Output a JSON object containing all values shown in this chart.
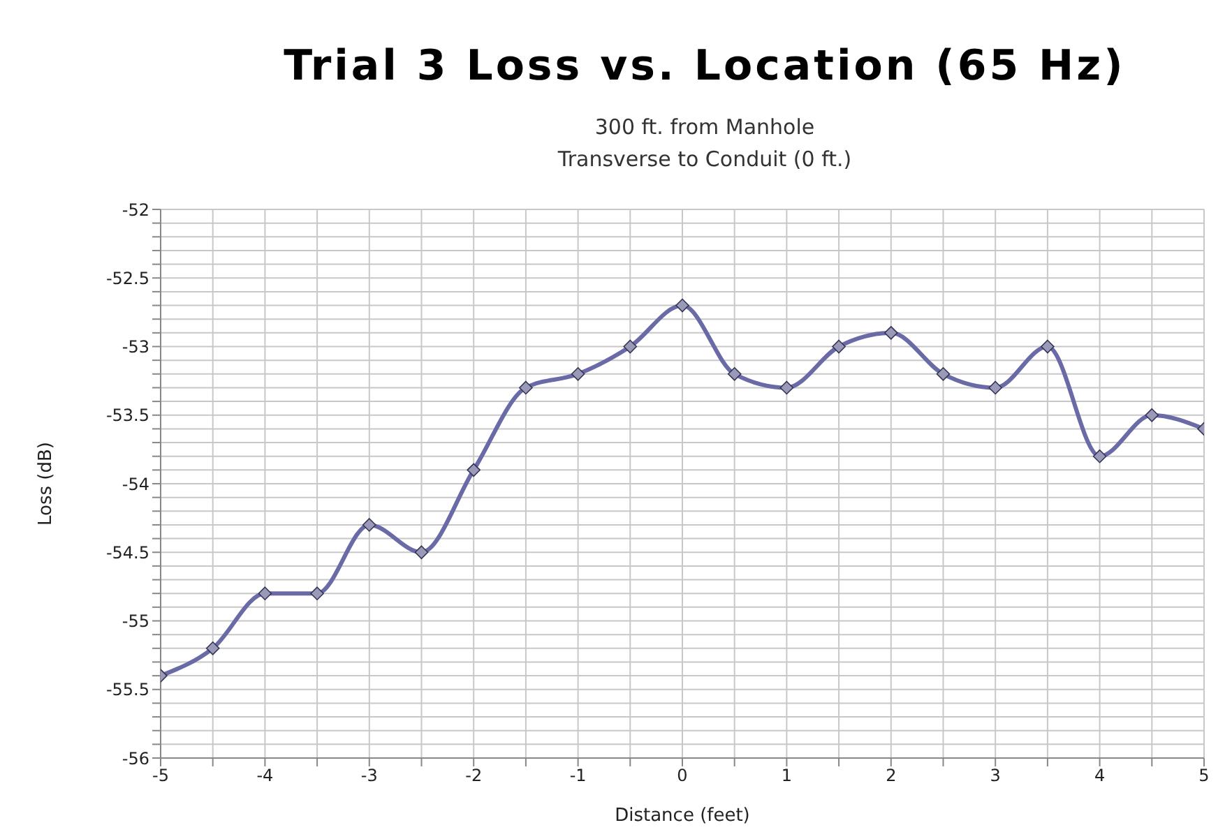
{
  "chart_data": {
    "type": "line",
    "title": "Trial 3 Loss vs. Location (65 Hz)",
    "subtitle": "300 ft. from Manhole\nTransverse to Conduit (0 ft.)",
    "xlabel": "Distance (feet)",
    "ylabel": "Loss (dB)",
    "x": [
      -5,
      -4.5,
      -4,
      -3.5,
      -3,
      -2.5,
      -2,
      -1.5,
      -1,
      -0.5,
      0,
      0.5,
      1,
      1.5,
      2,
      2.5,
      3,
      3.5,
      4,
      4.5,
      5
    ],
    "series": [
      {
        "color": "#6a6aa6",
        "values": [
          -55.4,
          -55.2,
          -54.8,
          -54.8,
          -54.3,
          -54.5,
          -53.9,
          -53.3,
          -53.2,
          -53.0,
          -52.7,
          -53.2,
          -53.3,
          -53.0,
          -52.9,
          -53.2,
          -53.3,
          -53.0,
          -53.8,
          -53.5,
          -53.6
        ]
      }
    ],
    "xlim": [
      -5,
      5
    ],
    "ylim": [
      -56,
      -52
    ],
    "xticks": [
      -5,
      {
        "value": -4.5,
        "label": null
      },
      -4,
      {
        "value": -3.5,
        "label": null
      },
      -3,
      {
        "value": -2.5,
        "label": null
      },
      -2,
      {
        "value": -1.5,
        "label": null
      },
      -1,
      {
        "value": -0.5,
        "label": null
      },
      0,
      {
        "value": 0.5,
        "label": null
      },
      1,
      {
        "value": 1.5,
        "label": null
      },
      2,
      {
        "value": 2.5,
        "label": null
      },
      3,
      {
        "value": 3.5,
        "label": null
      },
      4,
      {
        "value": 4.5,
        "label": null
      },
      5
    ],
    "yticks": [
      -56,
      {
        "value": -55.9,
        "label": null
      },
      {
        "value": -55.8,
        "label": null
      },
      {
        "value": -55.7,
        "label": null
      },
      {
        "value": -55.6,
        "label": null
      },
      -55.5,
      {
        "value": -55.4,
        "label": null
      },
      {
        "value": -55.3,
        "label": null
      },
      {
        "value": -55.2,
        "label": null
      },
      {
        "value": -55.1,
        "label": null
      },
      -55,
      {
        "value": -54.9,
        "label": null
      },
      {
        "value": -54.8,
        "label": null
      },
      {
        "value": -54.7,
        "label": null
      },
      {
        "value": -54.6,
        "label": null
      },
      -54.5,
      {
        "value": -54.4,
        "label": null
      },
      {
        "value": -54.3,
        "label": null
      },
      {
        "value": -54.2,
        "label": null
      },
      {
        "value": -54.1,
        "label": null
      },
      -54,
      {
        "value": -53.9,
        "label": null
      },
      {
        "value": -53.8,
        "label": null
      },
      {
        "value": -53.7,
        "label": null
      },
      {
        "value": -53.6,
        "label": null
      },
      -53.5,
      {
        "value": -53.4,
        "label": null
      },
      {
        "value": -53.3,
        "label": null
      },
      {
        "value": -53.2,
        "label": null
      },
      {
        "value": -53.1,
        "label": null
      },
      -53,
      {
        "value": -52.9,
        "label": null
      },
      {
        "value": -52.8,
        "label": null
      },
      {
        "value": -52.7,
        "label": null
      },
      {
        "value": -52.6,
        "label": null
      },
      -52.5,
      {
        "value": -52.4,
        "label": null
      },
      {
        "value": -52.3,
        "label": null
      },
      {
        "value": -52.2,
        "label": null
      },
      {
        "value": -52.1,
        "label": null
      },
      -52
    ],
    "grid": true,
    "legend": false,
    "marker": "diamond",
    "line_style": "solid"
  }
}
